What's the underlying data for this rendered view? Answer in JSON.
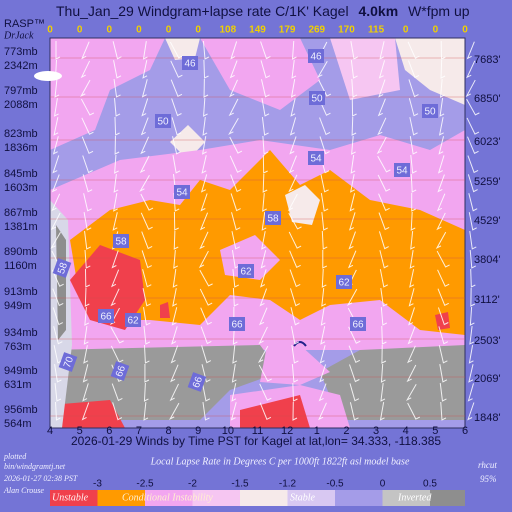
{
  "chart_data": {
    "type": "windgram",
    "title": "Thu_Jan_29 Windgram+lapse rate C/1K'  Kagel",
    "title_height": "4.0km",
    "title_unit": "W*fpm up",
    "brand": "RASP™",
    "author": "DrJack",
    "w_star": [
      0,
      0,
      0,
      0,
      0,
      0,
      108,
      149,
      179,
      269,
      170,
      115,
      0,
      0,
      0
    ],
    "categories": [
      "4",
      "5",
      "6",
      "7",
      "8",
      "9",
      "10",
      "11",
      "12",
      "1",
      "2",
      "3",
      "4",
      "5",
      "6"
    ],
    "pressure_levels": [
      "773mb",
      "797mb",
      "823mb",
      "845mb",
      "867mb",
      "890mb",
      "913mb",
      "934mb",
      "949mb",
      "956mb"
    ],
    "altitudes_m": [
      "2342m",
      "2088m",
      "1836m",
      "1603m",
      "1381m",
      "1160m",
      "949m",
      "763m",
      "631m",
      "564m"
    ],
    "altitudes_ft": [
      "7683'",
      "6850'",
      "6023'",
      "5259'",
      "4529'",
      "3804'",
      "3112'",
      "2503'",
      "2069'",
      "1848'"
    ],
    "contour_labels": [
      46,
      46,
      50,
      50,
      50,
      54,
      54,
      54,
      58,
      58,
      58,
      62,
      62,
      62,
      66,
      66,
      66,
      66,
      66,
      70
    ],
    "caption": "2026-01-29 Winds by Time PST for Kagel at lat,lon= 34.333, -118.385",
    "legend_title": "Local Lapse Rate in Degrees C per 1000ft   1822ft asl model base",
    "footer_left": [
      "plotted",
      "bin/windgramtj.net",
      "2026-01-27 02:38 PST",
      "Alan Crouse"
    ],
    "footer_right": [
      "rhcut",
      "95%"
    ],
    "colorbar": {
      "ticks": [
        -3,
        -2.5,
        -2,
        -1.5,
        -1.2,
        -0.5,
        0,
        0.5
      ],
      "colors": [
        "#f0404c",
        "#ff9a00",
        "#f2a6f0",
        "#f6c6f2",
        "#f6eaea",
        "#d8c8f2",
        "#a49ce8",
        "#c4c4c4",
        "#8e8e8e"
      ],
      "classes": [
        "Unstable",
        "Conditional Instability",
        "Stable",
        "Inverted"
      ]
    }
  }
}
